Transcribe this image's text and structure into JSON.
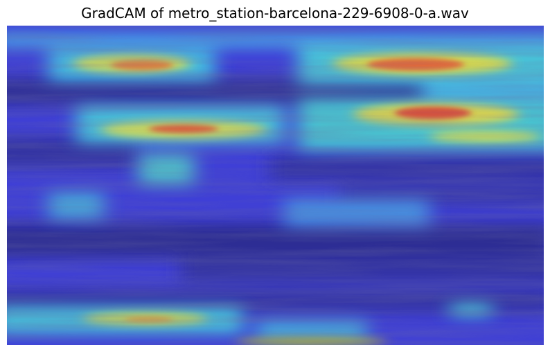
{
  "title": "GradCAM of metro_station-barcelona-229-6908-0-a.wav",
  "colors": {
    "background": "#ffffff",
    "cold": "#3b3ce0",
    "cool": "#40c8e8",
    "warm": "#e8e040",
    "hot": "#d83a2a"
  }
}
